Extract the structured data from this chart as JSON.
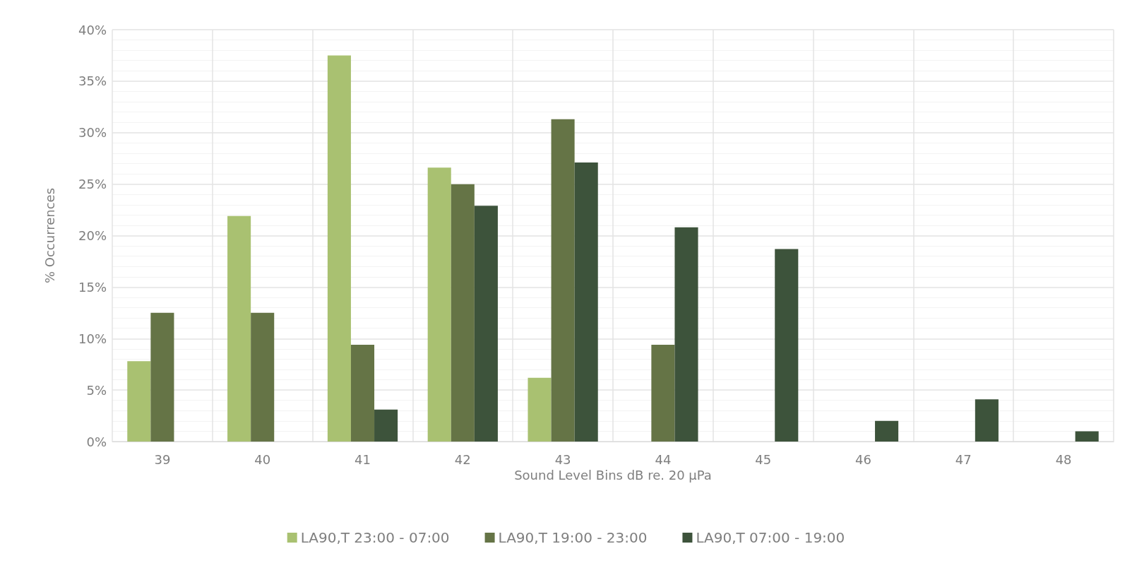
{
  "chart_data": {
    "type": "bar",
    "xlabel": "Sound Level Bins dB re. 20 µPa",
    "ylabel": "% Occurrences",
    "categories": [
      "39",
      "40",
      "41",
      "42",
      "43",
      "44",
      "45",
      "46",
      "47",
      "48"
    ],
    "series": [
      {
        "name": "LA90,T 23:00 - 07:00",
        "color": "#a9c171",
        "values": [
          7.8,
          21.9,
          37.5,
          26.6,
          6.2,
          null,
          null,
          null,
          null,
          null
        ]
      },
      {
        "name": "LA90,T 19:00 - 23:00",
        "color": "#657446",
        "values": [
          12.5,
          12.5,
          9.4,
          25.0,
          31.3,
          9.4,
          null,
          null,
          null,
          null
        ]
      },
      {
        "name": "LA90,T 07:00 - 19:00",
        "color": "#3d533b",
        "values": [
          null,
          null,
          3.1,
          22.9,
          27.1,
          20.8,
          18.7,
          2.0,
          4.1,
          1.0
        ]
      }
    ],
    "ylim": [
      0,
      40
    ],
    "yticks": [
      {
        "value": 0,
        "label": "0%"
      },
      {
        "value": 5,
        "label": "5%"
      },
      {
        "value": 10,
        "label": "10%"
      },
      {
        "value": 15,
        "label": "15%"
      },
      {
        "value": 20,
        "label": "20%"
      },
      {
        "value": 25,
        "label": "25%"
      },
      {
        "value": 30,
        "label": "30%"
      },
      {
        "value": 35,
        "label": "35%"
      },
      {
        "value": 40,
        "label": "40%"
      }
    ],
    "grid": true,
    "legend": "bottom"
  }
}
